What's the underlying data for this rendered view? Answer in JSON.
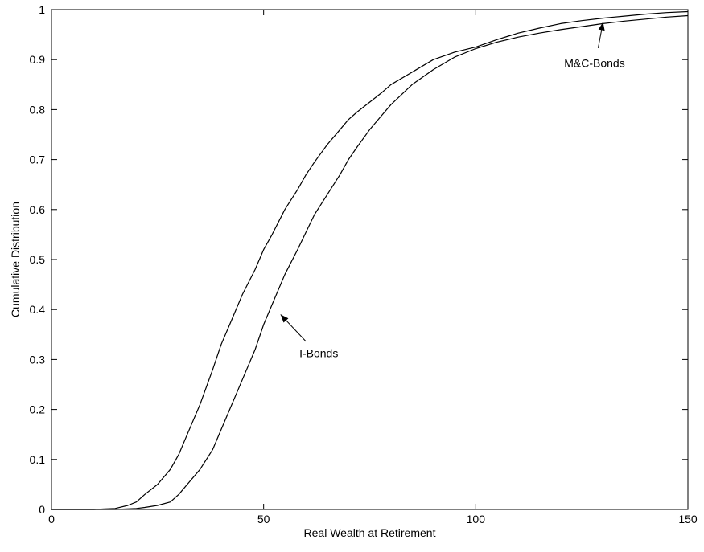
{
  "chart_data": {
    "type": "line",
    "title": "",
    "xlabel": "Real Wealth at Retirement",
    "ylabel": "Cumulative Distribution",
    "xlim": [
      0,
      150
    ],
    "ylim": [
      0,
      1
    ],
    "xticks": [
      0,
      50,
      100,
      150
    ],
    "yticks": [
      0,
      0.1,
      0.2,
      0.3,
      0.4,
      0.5,
      0.6,
      0.7,
      0.8,
      0.9,
      1
    ],
    "grid": false,
    "series": [
      {
        "name": "M&C-Bonds",
        "x": [
          0,
          10,
          15,
          18,
          20,
          22,
          25,
          28,
          30,
          32,
          35,
          38,
          40,
          42,
          45,
          48,
          50,
          52,
          55,
          58,
          60,
          62,
          65,
          68,
          70,
          72,
          75,
          78,
          80,
          85,
          90,
          95,
          100,
          105,
          110,
          115,
          120,
          125,
          130,
          135,
          140,
          145,
          150
        ],
        "y": [
          0,
          0,
          0.002,
          0.008,
          0.015,
          0.03,
          0.05,
          0.08,
          0.11,
          0.15,
          0.21,
          0.28,
          0.33,
          0.37,
          0.43,
          0.48,
          0.52,
          0.55,
          0.6,
          0.64,
          0.67,
          0.695,
          0.73,
          0.76,
          0.78,
          0.795,
          0.815,
          0.835,
          0.85,
          0.875,
          0.9,
          0.915,
          0.925,
          0.94,
          0.953,
          0.963,
          0.972,
          0.978,
          0.983,
          0.987,
          0.991,
          0.994,
          0.996
        ]
      },
      {
        "name": "I-Bonds",
        "x": [
          0,
          15,
          20,
          22,
          25,
          28,
          30,
          32,
          35,
          38,
          40,
          42,
          45,
          48,
          50,
          52,
          55,
          58,
          60,
          62,
          65,
          68,
          70,
          72,
          75,
          78,
          80,
          85,
          90,
          95,
          100,
          105,
          110,
          115,
          120,
          125,
          130,
          135,
          140,
          145,
          150
        ],
        "y": [
          0,
          0,
          0.002,
          0.004,
          0.008,
          0.015,
          0.03,
          0.05,
          0.08,
          0.12,
          0.16,
          0.2,
          0.26,
          0.32,
          0.37,
          0.41,
          0.47,
          0.52,
          0.555,
          0.59,
          0.63,
          0.67,
          0.7,
          0.725,
          0.76,
          0.79,
          0.81,
          0.85,
          0.88,
          0.905,
          0.922,
          0.935,
          0.945,
          0.953,
          0.96,
          0.966,
          0.972,
          0.977,
          0.981,
          0.985,
          0.988
        ]
      }
    ],
    "annotations": [
      {
        "text": "M&C-Bonds",
        "x": 128,
        "y": 0.885,
        "arrow_to": [
          130,
          0.975
        ]
      },
      {
        "text": "I-Bonds",
        "x": 63,
        "y": 0.305,
        "arrow_to": [
          54,
          0.39
        ]
      }
    ]
  }
}
